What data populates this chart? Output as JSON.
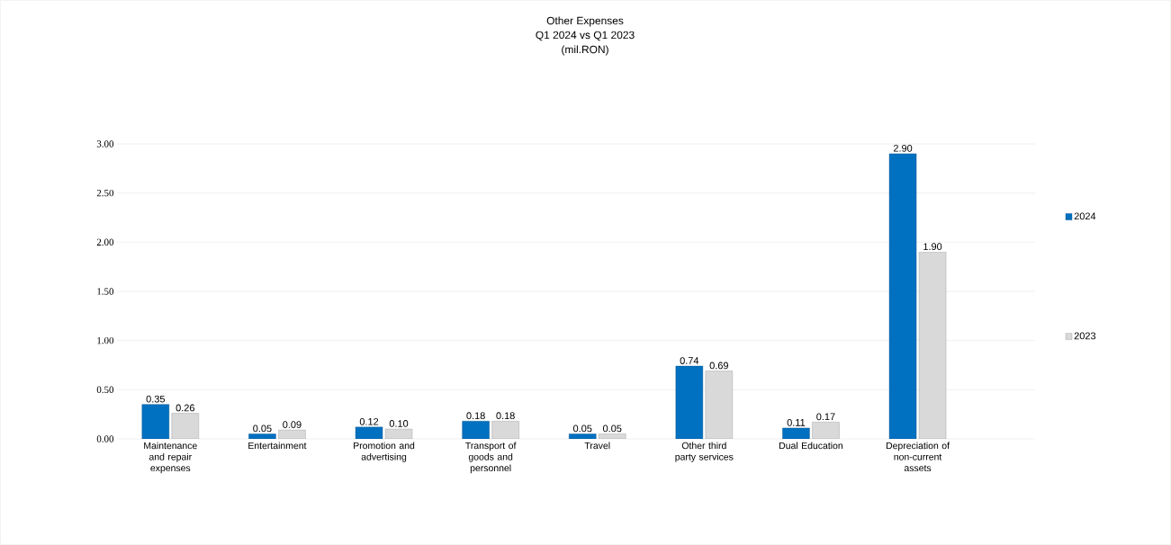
{
  "chart_data": {
    "type": "bar",
    "title": "Other Expenses",
    "subtitle": "Q1 2024 vs Q1 2023",
    "annotations": [
      "(mil.RON)"
    ],
    "categories": [
      "Maintenance and repair expenses",
      "Entertainment",
      "Promotion and advertising",
      "Transport of goods and personnel",
      "Travel",
      "Other third party services",
      "Dual Education",
      "Depreciation of non-current assets"
    ],
    "series": [
      {
        "name": "2024",
        "color": "#0070c0",
        "values": [
          0.35,
          0.05,
          0.12,
          0.18,
          0.05,
          0.74,
          0.11,
          2.9
        ],
        "value_labels": [
          "0.35",
          "0.05",
          "0.12",
          "0.18",
          "0.05",
          "0.74",
          "0.11",
          "2.90"
        ]
      },
      {
        "name": "2023",
        "color": "#d9d9d9",
        "values": [
          0.26,
          0.09,
          0.1,
          0.18,
          0.05,
          0.69,
          0.17,
          1.9
        ],
        "value_labels": [
          "0.26",
          "0.09",
          "0.10",
          "0.18",
          "0.05",
          "0.69",
          "0.17",
          "1.90"
        ]
      }
    ],
    "ylim": [
      0,
      3.0
    ],
    "yticks": [
      {
        "value": 0,
        "label": "0.00"
      },
      {
        "value": 0.5,
        "label": "0.50"
      },
      {
        "value": 1.0,
        "label": "1.00"
      },
      {
        "value": 1.5,
        "label": "1.50"
      },
      {
        "value": 2.0,
        "label": "2.00"
      },
      {
        "value": 2.5,
        "label": "2.50"
      },
      {
        "value": 3.0,
        "label": "3.00"
      }
    ],
    "grid": "y",
    "legend": "right"
  }
}
